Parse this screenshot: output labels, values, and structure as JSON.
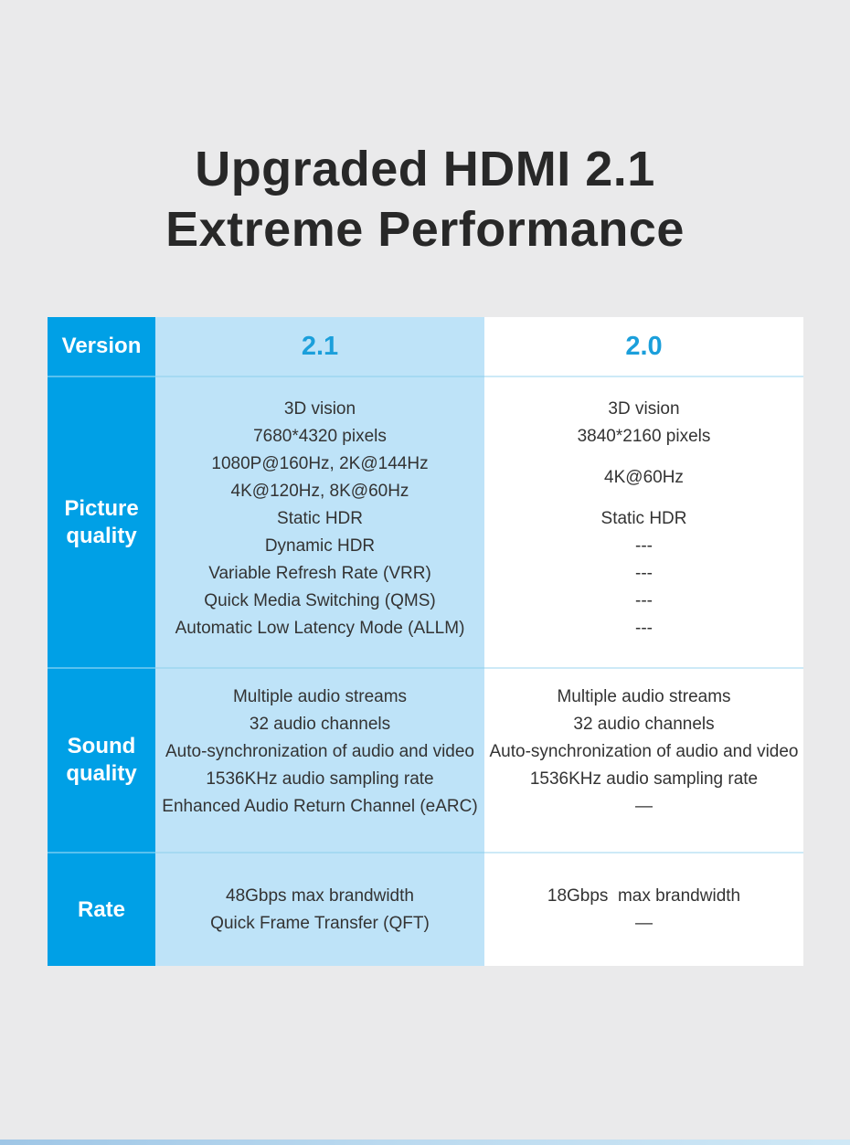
{
  "title": {
    "line1": "Upgraded HDMI 2.1",
    "line2": "Extreme Performance"
  },
  "colors": {
    "brand_blue": "#00a0e6",
    "light_blue_cell": "#bee3f8",
    "version_text_blue": "#1b9fdb",
    "body_text": "#333333",
    "background": "#eaeaeb"
  },
  "table": {
    "row_headers": {
      "version": "Version",
      "picture": "Picture quality",
      "sound": "Sound quality",
      "rate": "Rate"
    },
    "col_21": {
      "version": "2.1",
      "picture": [
        {
          "t": "3D vision",
          "h": 1
        },
        {
          "t": "7680*4320 pixels",
          "h": 1
        },
        {
          "t": "1080P@160Hz, 2K@144Hz",
          "h": 1
        },
        {
          "t": "4K@120Hz, 8K@60Hz",
          "h": 1
        },
        {
          "t": "Static HDR",
          "h": 1
        },
        {
          "t": "Dynamic HDR",
          "h": 1
        },
        {
          "t": "Variable Refresh Rate (VRR)",
          "h": 1
        },
        {
          "t": "Quick Media Switching (QMS)",
          "h": 1
        },
        {
          "t": "Automatic Low Latency Mode (ALLM)",
          "h": 1
        }
      ],
      "sound": [
        {
          "t": "Multiple audio streams",
          "h": 1
        },
        {
          "t": "32 audio channels",
          "h": 1
        },
        {
          "t": "Auto-synchronization of audio and video",
          "h": 1
        },
        {
          "t": "1536KHz audio sampling rate",
          "h": 1
        },
        {
          "t": "Enhanced Audio Return Channel (eARC)",
          "h": 1
        }
      ],
      "rate": [
        {
          "t": "48Gbps max brandwidth",
          "h": 1
        },
        {
          "t": "Quick Frame Transfer (QFT)",
          "h": 1
        }
      ]
    },
    "col_20": {
      "version": "2.0",
      "picture": [
        {
          "t": "3D vision",
          "h": 1
        },
        {
          "t": "3840*2160 pixels",
          "h": 1
        },
        {
          "t": "4K@60Hz",
          "h": 2
        },
        {
          "t": "Static HDR",
          "h": 1
        },
        {
          "t": "---",
          "h": 1
        },
        {
          "t": "---",
          "h": 1
        },
        {
          "t": "---",
          "h": 1
        },
        {
          "t": "---",
          "h": 1
        }
      ],
      "sound": [
        {
          "t": "Multiple audio streams",
          "h": 1
        },
        {
          "t": "32 audio channels",
          "h": 1
        },
        {
          "t": "Auto-synchronization of audio and video",
          "h": 1
        },
        {
          "t": "1536KHz audio sampling rate",
          "h": 1
        },
        {
          "t": "—",
          "h": 1
        }
      ],
      "rate": [
        {
          "t": "18Gbps  max brandwidth",
          "h": 1
        },
        {
          "t": "—",
          "h": 1
        }
      ]
    }
  }
}
